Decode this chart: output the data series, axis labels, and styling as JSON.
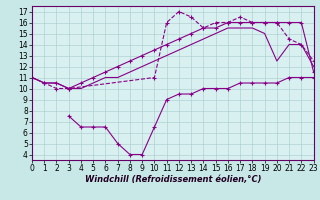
{
  "background_color": "#c8e8e8",
  "plot_bg_color": "#d8f0f0",
  "border_color": "#7744aa",
  "line_color": "#880088",
  "xlim": [
    0,
    23
  ],
  "ylim": [
    3.5,
    17.5
  ],
  "xticks": [
    0,
    1,
    2,
    3,
    4,
    5,
    6,
    7,
    8,
    9,
    10,
    11,
    12,
    13,
    14,
    15,
    16,
    17,
    18,
    19,
    20,
    21,
    22,
    23
  ],
  "yticks": [
    4,
    5,
    6,
    7,
    8,
    9,
    10,
    11,
    12,
    13,
    14,
    15,
    16,
    17
  ],
  "xlabel": "Windchill (Refroidissement éolien,°C)",
  "line1_x": [
    0,
    1,
    2,
    3,
    10,
    11,
    12,
    13,
    14,
    15,
    16,
    17,
    18,
    19,
    20,
    21,
    22,
    23
  ],
  "line1_y": [
    11,
    10.5,
    10,
    10,
    11,
    16,
    17,
    16.5,
    15.5,
    16,
    16,
    16.5,
    16,
    16,
    16,
    14.5,
    14,
    12.5
  ],
  "line2_x": [
    0,
    1,
    2,
    3,
    4,
    5,
    6,
    7,
    8,
    9,
    10,
    11,
    12,
    13,
    14,
    15,
    16,
    17,
    18,
    19,
    20,
    21,
    22,
    23
  ],
  "line2_y": [
    11,
    10.5,
    10.5,
    10,
    10.5,
    11,
    11.5,
    12,
    12.5,
    13,
    13.5,
    14,
    14.5,
    15,
    15.5,
    15.5,
    16,
    16,
    16,
    16,
    16,
    16,
    16,
    11.5
  ],
  "line3_x": [
    0,
    1,
    2,
    3,
    4,
    5,
    6,
    7,
    8,
    9,
    10,
    11,
    12,
    13,
    14,
    15,
    16,
    17,
    18,
    19,
    20,
    21,
    22,
    23
  ],
  "line3_y": [
    11,
    10.5,
    10.5,
    10,
    10,
    10.5,
    11,
    11,
    11.5,
    12,
    12.5,
    13,
    13.5,
    14,
    14.5,
    15,
    15.5,
    15.5,
    15.5,
    15,
    12.5,
    14,
    14,
    12
  ],
  "line4_x": [
    3,
    4,
    5,
    6,
    7,
    8,
    9,
    10,
    11,
    12,
    13,
    14,
    15,
    16,
    17,
    18,
    19,
    20,
    21,
    22,
    23
  ],
  "line4_y": [
    7.5,
    6.5,
    6.5,
    6.5,
    5,
    4,
    4,
    6.5,
    9,
    9.5,
    9.5,
    10,
    10,
    10,
    10.5,
    10.5,
    10.5,
    10.5,
    11,
    11,
    11
  ],
  "tick_fontsize": 5.5,
  "xlabel_fontsize": 6.0,
  "linewidth": 0.8,
  "markersize": 3.5
}
